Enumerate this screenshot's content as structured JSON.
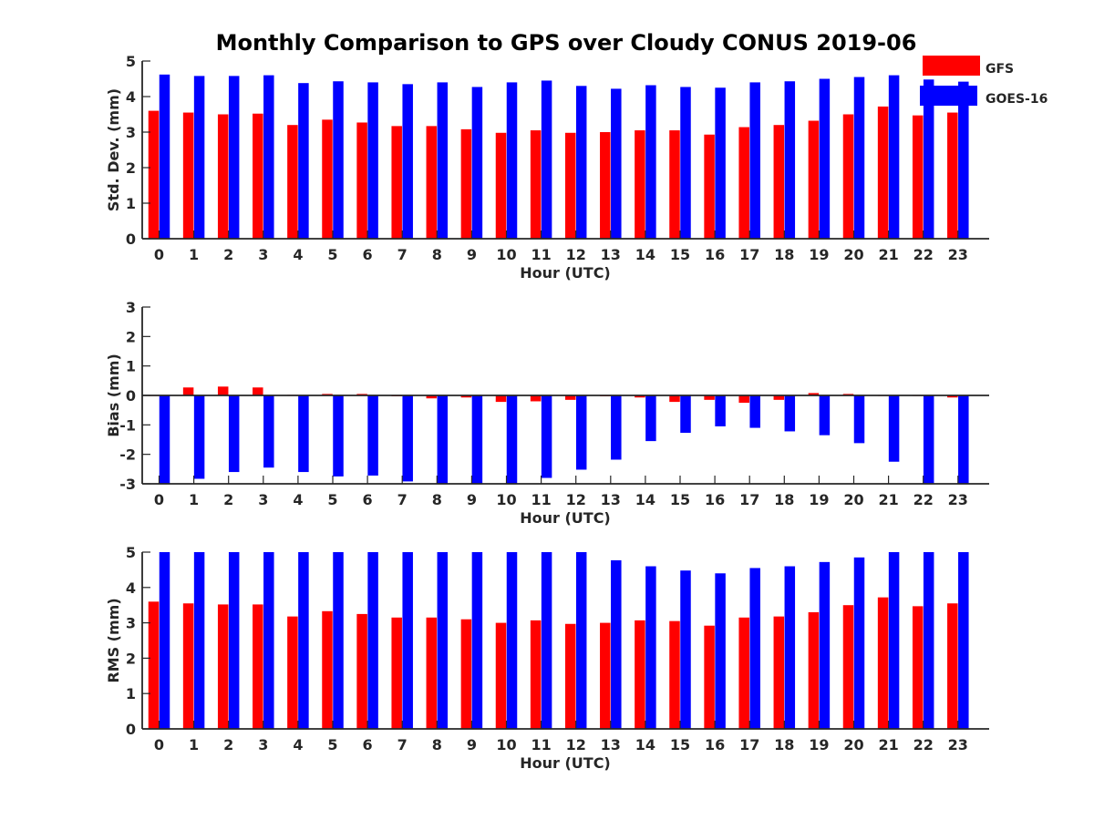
{
  "title": "Monthly Comparison to GPS over Cloudy CONUS 2019-06",
  "legend": {
    "position": "top-right",
    "entries": [
      {
        "label": "GFS",
        "color": "#ff0000"
      },
      {
        "label": "GOES-16",
        "color": "#0000ff"
      }
    ]
  },
  "chart_data": [
    {
      "type": "bar",
      "xlabel": "Hour (UTC)",
      "ylabel": "Std. Dev. (mm)",
      "ylim": [
        0,
        5
      ],
      "yticks": [
        0,
        1,
        2,
        3,
        4,
        5
      ],
      "categories": [
        "0",
        "1",
        "2",
        "3",
        "4",
        "5",
        "6",
        "7",
        "8",
        "9",
        "10",
        "11",
        "12",
        "13",
        "14",
        "15",
        "16",
        "17",
        "18",
        "19",
        "20",
        "21",
        "22",
        "23"
      ],
      "series": [
        {
          "name": "GFS",
          "color": "#ff0000",
          "values": [
            3.6,
            3.55,
            3.5,
            3.52,
            3.2,
            3.35,
            3.27,
            3.17,
            3.17,
            3.08,
            2.98,
            3.05,
            2.98,
            3.0,
            3.05,
            3.05,
            2.93,
            3.14,
            3.2,
            3.32,
            3.5,
            3.72,
            3.47,
            3.55
          ]
        },
        {
          "name": "GOES-16",
          "color": "#0000ff",
          "values": [
            4.62,
            4.58,
            4.58,
            4.6,
            4.38,
            4.43,
            4.4,
            4.35,
            4.4,
            4.27,
            4.4,
            4.45,
            4.3,
            4.22,
            4.32,
            4.27,
            4.25,
            4.4,
            4.43,
            4.5,
            4.55,
            4.6,
            4.48,
            4.42
          ]
        }
      ]
    },
    {
      "type": "bar",
      "xlabel": "Hour (UTC)",
      "ylabel": "Bias (mm)",
      "ylim": [
        -3,
        3
      ],
      "yticks": [
        -3,
        -2,
        -1,
        0,
        1,
        2,
        3
      ],
      "categories": [
        "0",
        "1",
        "2",
        "3",
        "4",
        "5",
        "6",
        "7",
        "8",
        "9",
        "10",
        "11",
        "12",
        "13",
        "14",
        "15",
        "16",
        "17",
        "18",
        "19",
        "20",
        "21",
        "22",
        "23"
      ],
      "series": [
        {
          "name": "GFS",
          "color": "#ff0000",
          "values": [
            -0.02,
            0.27,
            0.3,
            0.27,
            0.02,
            0.05,
            0.05,
            -0.03,
            -0.1,
            -0.07,
            -0.22,
            -0.2,
            -0.15,
            -0.03,
            -0.07,
            -0.22,
            -0.15,
            -0.25,
            -0.15,
            0.08,
            0.05,
            -0.02,
            -0.02,
            -0.07
          ]
        },
        {
          "name": "GOES-16",
          "color": "#0000ff",
          "values": [
            -3.0,
            -2.83,
            -2.6,
            -2.45,
            -2.6,
            -2.75,
            -2.72,
            -2.92,
            -3.0,
            -3.0,
            -3.0,
            -2.8,
            -2.52,
            -2.18,
            -1.55,
            -1.27,
            -1.05,
            -1.1,
            -1.22,
            -1.35,
            -1.62,
            -2.25,
            -2.98,
            -3.0
          ]
        }
      ]
    },
    {
      "type": "bar",
      "xlabel": "Hour (UTC)",
      "ylabel": "RMS (mm)",
      "ylim": [
        0,
        5
      ],
      "yticks": [
        0,
        1,
        2,
        3,
        4,
        5
      ],
      "categories": [
        "0",
        "1",
        "2",
        "3",
        "4",
        "5",
        "6",
        "7",
        "8",
        "9",
        "10",
        "11",
        "12",
        "13",
        "14",
        "15",
        "16",
        "17",
        "18",
        "19",
        "20",
        "21",
        "22",
        "23"
      ],
      "series": [
        {
          "name": "GFS",
          "color": "#ff0000",
          "values": [
            3.6,
            3.55,
            3.52,
            3.52,
            3.18,
            3.33,
            3.25,
            3.15,
            3.15,
            3.1,
            3.0,
            3.07,
            2.97,
            3.0,
            3.07,
            3.05,
            2.92,
            3.15,
            3.18,
            3.3,
            3.5,
            3.72,
            3.47,
            3.55
          ]
        },
        {
          "name": "GOES-16",
          "color": "#0000ff",
          "values": [
            5.0,
            5.0,
            5.0,
            5.0,
            5.0,
            5.0,
            5.0,
            5.0,
            5.0,
            5.0,
            5.0,
            5.0,
            5.0,
            4.77,
            4.6,
            4.48,
            4.4,
            4.55,
            4.6,
            4.72,
            4.85,
            5.0,
            5.0,
            5.0
          ]
        }
      ]
    }
  ]
}
